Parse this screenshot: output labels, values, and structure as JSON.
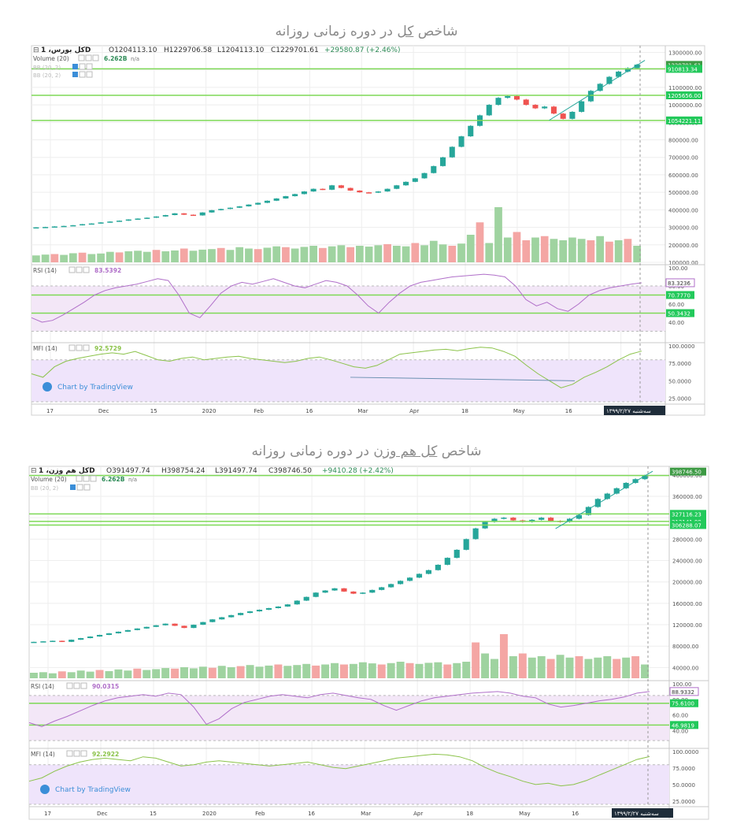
{
  "panels": [
    {
      "title_pre": "شاخص ",
      "title_em": "کل",
      "title_post": " در دوره زمانی روزانه",
      "symbol": "کل بورس، 1D",
      "ohlc": {
        "o": "O1204113.10",
        "h": "H1229706.58",
        "l": "L1204113.10",
        "c": "C1229701.61",
        "chg": "+29580.87 (+2.46%)"
      },
      "volume_label": "Volume (20)",
      "volume_value": "6.262B",
      "volume_na": "n/a",
      "bb_labels": [
        "BB (20, 2)",
        "BB (20, 2)"
      ],
      "rsi_label": "RSI (14)",
      "rsi_value": "83.5392",
      "mfi_label": "MFI (14)",
      "mfi_value": "92.5729",
      "watermark": "Chart by TradingView",
      "date_badge": "سه‌شنبه ۱۳۹۹/۲/۲۷",
      "price_badges": [
        "1229701.61",
        "1205656.00",
        "1054221.11",
        "910813.34"
      ],
      "rsi_badges": [
        "83.3236",
        "70.7770",
        "50.3432"
      ],
      "colors": {
        "up": "#26a69a",
        "down": "#ef5350",
        "hline": "#7ed957",
        "rsi": "#b06fc9",
        "mfi": "#8bc34a"
      }
    },
    {
      "title_pre": "شاخص ",
      "title_em": "کل هم وزن",
      "title_post": " در دوره زمانی روزانه",
      "symbol": "کل هم وزن، 1D",
      "ohlc": {
        "o": "O391497.74",
        "h": "H398754.24",
        "l": "L391497.74",
        "c": "C398746.50",
        "chg": "+9410.28 (+2.42%)"
      },
      "volume_label": "Volume (20)",
      "volume_value": "6.262B",
      "volume_na": "n/a",
      "bb_labels": [
        "BB (20, 2)"
      ],
      "rsi_label": "RSI (14)",
      "rsi_value": "90.0315",
      "mfi_label": "MFI (14)",
      "mfi_value": "92.2922",
      "watermark": "Chart by TradingView",
      "date_badge": "سه‌شنبه ۱۳۹۹/۲/۲۷",
      "price_badges": [
        "398746.50",
        "327116.23",
        "313141.99",
        "306288.07"
      ],
      "rsi_badges": [
        "88.9332",
        "75.6100",
        "46.9819"
      ],
      "colors": {
        "up": "#26a69a",
        "down": "#ef5350",
        "hline": "#7ed957",
        "rsi": "#b06fc9",
        "mfi": "#8bc34a"
      }
    }
  ],
  "chart_data": [
    {
      "type": "candlestick",
      "title": "شاخص کل در دوره زمانی روزانه",
      "x_ticks": [
        "17",
        "Dec",
        "15",
        "2020",
        "Feb",
        "16",
        "Mar",
        "Apr",
        "18",
        "May",
        "16",
        "Jun"
      ],
      "y_ticks": [
        1300000,
        1200000,
        1100000,
        1000000,
        900000,
        800000,
        700000,
        600000,
        500000,
        400000,
        300000,
        200000,
        100000
      ],
      "ylim": [
        100000,
        1320000
      ],
      "close_series": [
        300000,
        302000,
        305000,
        308000,
        312000,
        318000,
        322000,
        328000,
        333000,
        338000,
        345000,
        350000,
        355000,
        362000,
        370000,
        380000,
        372000,
        368000,
        385000,
        398000,
        405000,
        412000,
        420000,
        430000,
        440000,
        452000,
        465000,
        478000,
        490000,
        505000,
        520000,
        515000,
        540000,
        525000,
        510000,
        500000,
        498000,
        505000,
        520000,
        540000,
        560000,
        580000,
        610000,
        650000,
        700000,
        760000,
        820000,
        880000,
        940000,
        1000000,
        1040000,
        1050000,
        1030000,
        1000000,
        980000,
        990000,
        950000,
        920000,
        960000,
        1020000,
        1080000,
        1120000,
        1160000,
        1190000,
        1210000,
        1229701
      ],
      "horizontal_levels": [
        1205656,
        1054221,
        910813
      ],
      "volume_relative": [
        0.25,
        0.28,
        0.3,
        0.27,
        0.33,
        0.35,
        0.3,
        0.32,
        0.38,
        0.36,
        0.4,
        0.42,
        0.38,
        0.45,
        0.4,
        0.43,
        0.5,
        0.42,
        0.46,
        0.48,
        0.52,
        0.45,
        0.55,
        0.5,
        0.48,
        0.53,
        0.58,
        0.55,
        0.5,
        0.56,
        0.6,
        0.52,
        0.58,
        0.62,
        0.55,
        0.6,
        0.57,
        0.62,
        0.66,
        0.6,
        0.58,
        0.7,
        0.62,
        0.78,
        0.65,
        0.6,
        0.68,
        1.0,
        1.45,
        0.7,
        2.0,
        0.9,
        1.1,
        0.8,
        0.9,
        0.95,
        0.85,
        0.8,
        0.9,
        0.85,
        0.8,
        0.95,
        0.75,
        0.8,
        0.85,
        0.6
      ],
      "volume_down": [
        2,
        5,
        9,
        13,
        16,
        20,
        24,
        27,
        31,
        34,
        38,
        41,
        45,
        48,
        52,
        53,
        55,
        60,
        62,
        64,
        66,
        68,
        69
      ],
      "rsi": {
        "range": [
          20,
          100
        ],
        "levels": [
          70,
          50
        ],
        "last": 83.5392,
        "values": [
          45,
          40,
          42,
          48,
          55,
          62,
          70,
          75,
          78,
          80,
          82,
          85,
          88,
          86,
          70,
          50,
          45,
          58,
          72,
          80,
          84,
          82,
          85,
          88,
          84,
          80,
          78,
          82,
          86,
          84,
          80,
          70,
          58,
          50,
          62,
          72,
          80,
          84,
          86,
          88,
          90,
          91,
          92,
          93,
          92,
          90,
          80,
          65,
          58,
          62,
          55,
          52,
          60,
          70,
          75,
          78,
          80,
          82,
          83.5
        ]
      },
      "mfi": {
        "range": [
          20,
          100
        ],
        "levels": [
          80,
          20
        ],
        "last": 92.5729,
        "values": [
          60,
          55,
          70,
          78,
          82,
          85,
          88,
          90,
          88,
          92,
          86,
          80,
          78,
          82,
          84,
          80,
          82,
          84,
          85,
          82,
          80,
          78,
          76,
          78,
          82,
          84,
          80,
          75,
          70,
          68,
          72,
          80,
          88,
          90,
          92,
          94,
          95,
          93,
          96,
          98,
          97,
          92,
          85,
          72,
          60,
          50,
          40,
          45,
          55,
          62,
          70,
          80,
          88,
          92.5
        ]
      }
    },
    {
      "type": "candlestick",
      "title": "شاخص کل هم وزن در دوره زمانی روزانه",
      "x_ticks": [
        "17",
        "Dec",
        "15",
        "2020",
        "Feb",
        "16",
        "Mar",
        "Apr",
        "18",
        "May",
        "16",
        "Jun"
      ],
      "y_ticks": [
        400000,
        360000,
        320000,
        280000,
        240000,
        200000,
        160000,
        120000,
        80000,
        40000
      ],
      "ylim": [
        20000,
        410000
      ],
      "close_series": [
        88000,
        89000,
        90000,
        88000,
        92000,
        95000,
        98000,
        101000,
        104000,
        107000,
        110000,
        113000,
        116000,
        119000,
        122000,
        118000,
        114000,
        120000,
        125000,
        130000,
        134000,
        138000,
        142000,
        145000,
        148000,
        151000,
        154000,
        158000,
        165000,
        172000,
        180000,
        184000,
        188000,
        182000,
        178000,
        180000,
        185000,
        190000,
        196000,
        202000,
        208000,
        215000,
        222000,
        232000,
        245000,
        260000,
        280000,
        300000,
        312000,
        318000,
        320000,
        315000,
        312000,
        316000,
        320000,
        314000,
        312000,
        318000,
        325000,
        340000,
        355000,
        365000,
        375000,
        385000,
        392000,
        398746
      ],
      "horizontal_levels": [
        398746,
        327116,
        313141,
        306288
      ],
      "volume_relative": [
        0.2,
        0.22,
        0.18,
        0.25,
        0.22,
        0.28,
        0.24,
        0.3,
        0.26,
        0.32,
        0.28,
        0.35,
        0.3,
        0.33,
        0.37,
        0.35,
        0.4,
        0.36,
        0.42,
        0.38,
        0.45,
        0.4,
        0.44,
        0.48,
        0.42,
        0.46,
        0.5,
        0.45,
        0.48,
        0.52,
        0.46,
        0.5,
        0.55,
        0.5,
        0.52,
        0.58,
        0.54,
        0.5,
        0.55,
        0.6,
        0.55,
        0.52,
        0.56,
        0.58,
        0.5,
        0.55,
        0.6,
        1.3,
        0.9,
        0.7,
        1.6,
        0.8,
        0.9,
        0.75,
        0.8,
        0.7,
        0.85,
        0.75,
        0.8,
        0.7,
        0.75,
        0.8,
        0.7,
        0.75,
        0.8,
        0.5
      ],
      "volume_down": [
        3,
        7,
        11,
        15,
        19,
        22,
        26,
        30,
        33,
        37,
        40,
        44,
        47,
        50,
        52,
        55,
        58,
        62,
        64
      ],
      "rsi": {
        "range": [
          20,
          100
        ],
        "levels": [
          75,
          47
        ],
        "last": 90.0315,
        "values": [
          50,
          45,
          52,
          58,
          65,
          72,
          78,
          82,
          84,
          86,
          84,
          88,
          86,
          70,
          48,
          55,
          68,
          76,
          80,
          84,
          86,
          84,
          82,
          86,
          88,
          85,
          82,
          80,
          72,
          66,
          72,
          78,
          82,
          84,
          86,
          88,
          89,
          90,
          88,
          84,
          82,
          74,
          70,
          72,
          75,
          78,
          80,
          83,
          88,
          90
        ]
      },
      "mfi": {
        "range": [
          20,
          100
        ],
        "levels": [
          80,
          20
        ],
        "last": 92.2922,
        "values": [
          55,
          60,
          70,
          78,
          84,
          88,
          90,
          88,
          86,
          92,
          90,
          84,
          78,
          80,
          84,
          86,
          84,
          82,
          80,
          78,
          80,
          82,
          84,
          80,
          76,
          74,
          78,
          82,
          86,
          90,
          92,
          94,
          96,
          95,
          92,
          86,
          76,
          68,
          62,
          55,
          50,
          52,
          48,
          50,
          56,
          64,
          72,
          80,
          88,
          92.3
        ]
      }
    }
  ]
}
